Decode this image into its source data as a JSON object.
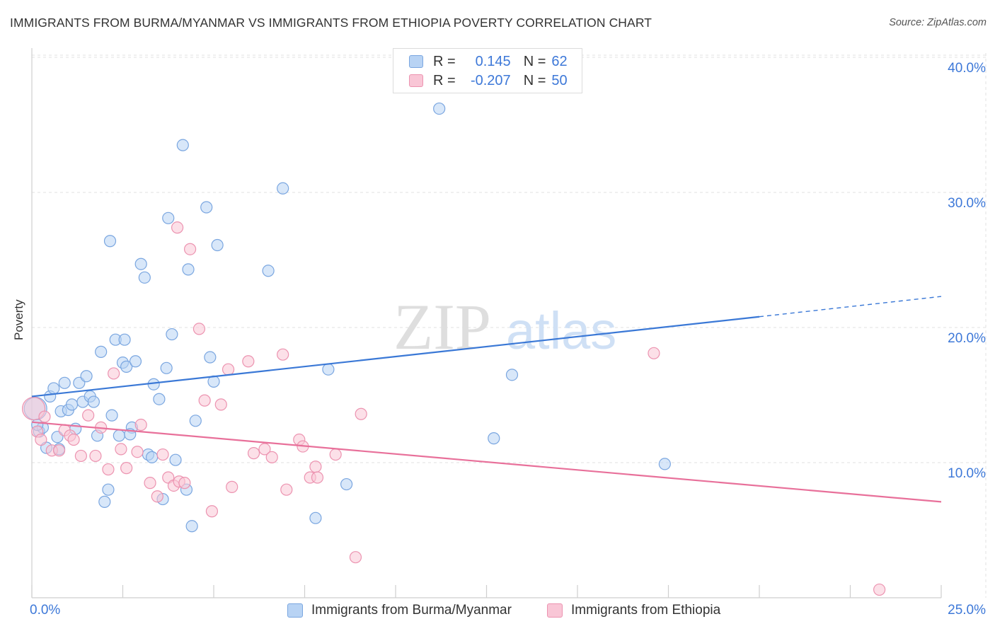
{
  "header": {
    "title": "IMMIGRANTS FROM BURMA/MYANMAR VS IMMIGRANTS FROM ETHIOPIA POVERTY CORRELATION CHART",
    "source": "Source: ZipAtlas.com"
  },
  "legend": {
    "r_label": "R =",
    "n_label": "N =",
    "series": [
      {
        "r": "0.145",
        "n": "62"
      },
      {
        "r": "-0.207",
        "n": "50"
      }
    ]
  },
  "colors": {
    "blue_fill": "#b8d3f4",
    "blue_stroke": "#7aa6e0",
    "blue_line": "#3a78d6",
    "pink_fill": "#f9c6d6",
    "pink_stroke": "#ec93b0",
    "pink_line": "#e8709a",
    "tick_text": "#3d78d8",
    "grid": "#e2e2e2"
  },
  "chart_data": {
    "type": "scatter",
    "title": "IMMIGRANTS FROM BURMA/MYANMAR VS IMMIGRANTS FROM ETHIOPIA POVERTY CORRELATION CHART",
    "xlabel": "",
    "ylabel": "Poverty",
    "xlim": [
      0,
      25
    ],
    "ylim": [
      0,
      42
    ],
    "x_tick_labels": [
      "0.0%",
      "25.0%"
    ],
    "y_ticks": [
      10,
      20,
      30,
      40
    ],
    "y_tick_labels": [
      "10.0%",
      "20.0%",
      "30.0%",
      "40.0%"
    ],
    "watermark": "ZIPatlas",
    "series": [
      {
        "name": "Immigrants from Burma/Myanmar",
        "color": "blue",
        "trend": {
          "x0": 0,
          "y0": 14.9,
          "x1": 20,
          "y1": 20.8,
          "dash_to_x": 25,
          "dash_to_y": 22.3
        },
        "points": [
          [
            0.1,
            14.0
          ],
          [
            0.2,
            12.3
          ],
          [
            0.3,
            12.6
          ],
          [
            0.4,
            11.1
          ],
          [
            0.5,
            14.9
          ],
          [
            0.6,
            15.5
          ],
          [
            0.7,
            11.9
          ],
          [
            0.75,
            11.0
          ],
          [
            0.8,
            13.8
          ],
          [
            0.9,
            15.9
          ],
          [
            1.0,
            13.9
          ],
          [
            1.1,
            14.3
          ],
          [
            1.2,
            12.5
          ],
          [
            1.3,
            15.9
          ],
          [
            1.4,
            14.5
          ],
          [
            1.5,
            16.4
          ],
          [
            1.6,
            14.9
          ],
          [
            1.7,
            14.5
          ],
          [
            1.8,
            12.0
          ],
          [
            1.9,
            18.2
          ],
          [
            2.0,
            7.1
          ],
          [
            2.1,
            8.0
          ],
          [
            2.15,
            26.4
          ],
          [
            2.2,
            13.5
          ],
          [
            2.3,
            19.1
          ],
          [
            2.4,
            12.0
          ],
          [
            2.5,
            17.4
          ],
          [
            2.55,
            19.1
          ],
          [
            2.6,
            17.1
          ],
          [
            2.75,
            12.6
          ],
          [
            2.85,
            17.5
          ],
          [
            3.0,
            24.7
          ],
          [
            3.1,
            23.7
          ],
          [
            3.2,
            10.6
          ],
          [
            3.3,
            10.4
          ],
          [
            3.35,
            15.8
          ],
          [
            3.5,
            14.7
          ],
          [
            3.6,
            7.3
          ],
          [
            3.7,
            17.0
          ],
          [
            3.75,
            28.1
          ],
          [
            3.85,
            19.5
          ],
          [
            3.95,
            10.2
          ],
          [
            4.15,
            33.5
          ],
          [
            4.25,
            8.0
          ],
          [
            4.3,
            24.3
          ],
          [
            4.4,
            5.3
          ],
          [
            4.5,
            13.1
          ],
          [
            4.8,
            28.9
          ],
          [
            4.9,
            17.8
          ],
          [
            5.0,
            16.0
          ],
          [
            5.1,
            26.1
          ],
          [
            6.5,
            24.2
          ],
          [
            6.9,
            30.3
          ],
          [
            7.8,
            5.9
          ],
          [
            8.15,
            16.9
          ],
          [
            8.65,
            8.4
          ],
          [
            11.2,
            36.2
          ],
          [
            12.7,
            11.8
          ],
          [
            13.2,
            16.5
          ],
          [
            17.4,
            9.9
          ],
          [
            0.15,
            12.8
          ],
          [
            2.7,
            12.1
          ]
        ]
      },
      {
        "name": "Immigrants from Ethiopia",
        "color": "pink",
        "trend": {
          "x0": 0,
          "y0": 13.0,
          "x1": 25,
          "y1": 7.1
        },
        "points": [
          [
            0.05,
            14.0
          ],
          [
            0.15,
            12.3
          ],
          [
            0.25,
            11.7
          ],
          [
            0.35,
            13.4
          ],
          [
            0.55,
            10.9
          ],
          [
            0.75,
            10.9
          ],
          [
            0.9,
            12.4
          ],
          [
            1.05,
            12.0
          ],
          [
            1.15,
            11.7
          ],
          [
            1.35,
            10.5
          ],
          [
            1.55,
            13.5
          ],
          [
            1.75,
            10.5
          ],
          [
            1.9,
            12.6
          ],
          [
            2.1,
            9.5
          ],
          [
            2.25,
            16.6
          ],
          [
            2.45,
            11.0
          ],
          [
            2.6,
            9.6
          ],
          [
            2.9,
            10.8
          ],
          [
            3.0,
            12.8
          ],
          [
            3.25,
            8.5
          ],
          [
            3.45,
            7.5
          ],
          [
            3.6,
            10.6
          ],
          [
            3.75,
            8.9
          ],
          [
            3.9,
            8.3
          ],
          [
            4.0,
            27.4
          ],
          [
            4.05,
            8.6
          ],
          [
            4.2,
            8.5
          ],
          [
            4.35,
            25.8
          ],
          [
            4.6,
            19.9
          ],
          [
            4.75,
            14.6
          ],
          [
            4.95,
            6.4
          ],
          [
            5.2,
            14.3
          ],
          [
            5.4,
            16.9
          ],
          [
            5.5,
            8.2
          ],
          [
            5.95,
            17.5
          ],
          [
            6.1,
            10.7
          ],
          [
            6.4,
            11.0
          ],
          [
            6.6,
            10.4
          ],
          [
            6.9,
            18.0
          ],
          [
            7.0,
            8.0
          ],
          [
            7.35,
            11.7
          ],
          [
            7.45,
            11.2
          ],
          [
            7.65,
            8.9
          ],
          [
            7.8,
            9.7
          ],
          [
            7.85,
            8.9
          ],
          [
            8.35,
            10.6
          ],
          [
            8.9,
            3.0
          ],
          [
            9.05,
            13.6
          ],
          [
            17.1,
            18.1
          ],
          [
            23.3,
            0.6
          ]
        ]
      }
    ]
  },
  "bottom_legend": {
    "items": [
      "Immigrants from Burma/Myanmar",
      "Immigrants from Ethiopia"
    ]
  }
}
